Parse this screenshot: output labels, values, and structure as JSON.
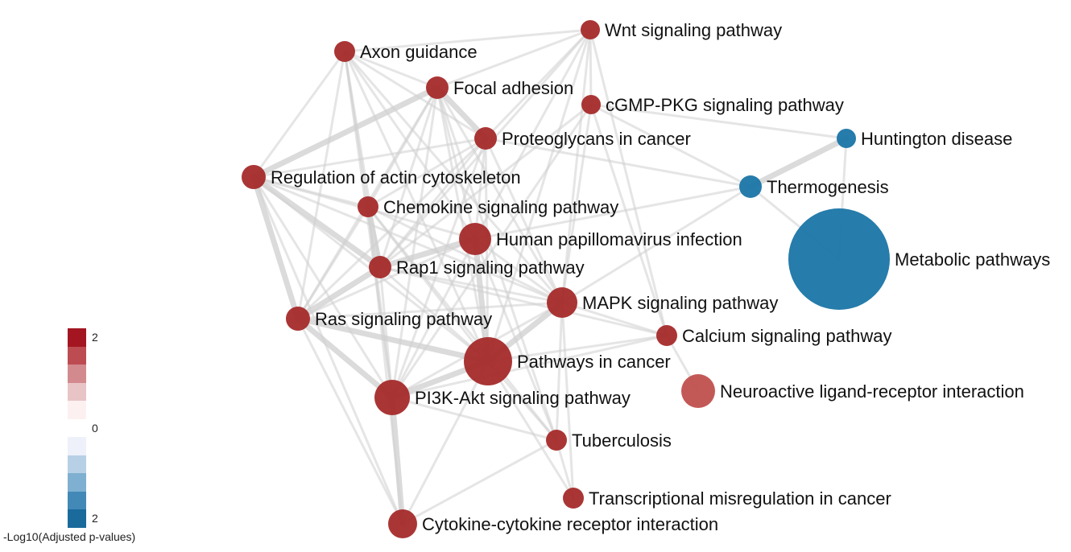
{
  "nodes": [
    {
      "id": "axon",
      "label": "Axon guidance",
      "color": "#a52a2a"
    },
    {
      "id": "wnt",
      "label": "Wnt signaling pathway",
      "color": "#a52a2a"
    },
    {
      "id": "focal",
      "label": "Focal adhesion",
      "color": "#a52a2a"
    },
    {
      "id": "cgmp",
      "label": "cGMP-PKG signaling pathway",
      "color": "#a52a2a"
    },
    {
      "id": "proteo",
      "label": "Proteoglycans in cancer",
      "color": "#a52a2a"
    },
    {
      "id": "hunt",
      "label": "Huntington disease",
      "color": "#1a75a6"
    },
    {
      "id": "actin",
      "label": "Regulation of actin cytoskeleton",
      "color": "#a52a2a"
    },
    {
      "id": "thermo",
      "label": "Thermogenesis",
      "color": "#1a75a6"
    },
    {
      "id": "chemo",
      "label": "Chemokine signaling pathway",
      "color": "#a52a2a"
    },
    {
      "id": "hpv",
      "label": "Human papillomavirus infection",
      "color": "#a52a2a"
    },
    {
      "id": "metab",
      "label": "Metabolic pathways",
      "color": "#1a75a6"
    },
    {
      "id": "rap1",
      "label": "Rap1 signaling pathway",
      "color": "#a52a2a"
    },
    {
      "id": "mapk",
      "label": "MAPK signaling pathway",
      "color": "#a52a2a"
    },
    {
      "id": "ras",
      "label": "Ras signaling pathway",
      "color": "#a52a2a"
    },
    {
      "id": "calcium",
      "label": "Calcium signaling pathway",
      "color": "#a52a2a"
    },
    {
      "id": "cancer",
      "label": "Pathways in cancer",
      "color": "#a52a2a"
    },
    {
      "id": "neuro",
      "label": "Neuroactive ligand-receptor interaction",
      "color": "#c0504d"
    },
    {
      "id": "pi3k",
      "label": "PI3K-Akt signaling pathway",
      "color": "#a52a2a"
    },
    {
      "id": "tuber",
      "label": "Tuberculosis",
      "color": "#a52a2a"
    },
    {
      "id": "transc",
      "label": "Transcriptional misregulation in cancer",
      "color": "#a52a2a"
    },
    {
      "id": "cyto",
      "label": "Cytokine-cytokine receptor interaction",
      "color": "#a52a2a"
    }
  ],
  "edges": [
    [
      "axon",
      "focal"
    ],
    [
      "axon",
      "proteo"
    ],
    [
      "axon",
      "actin"
    ],
    [
      "axon",
      "chemo"
    ],
    [
      "axon",
      "rap1"
    ],
    [
      "axon",
      "ras"
    ],
    [
      "axon",
      "mapk"
    ],
    [
      "axon",
      "wnt"
    ],
    [
      "axon",
      "hpv"
    ],
    [
      "axon",
      "pi3k"
    ],
    [
      "axon",
      "cancer"
    ],
    [
      "wnt",
      "proteo"
    ],
    [
      "wnt",
      "focal"
    ],
    [
      "wnt",
      "cancer"
    ],
    [
      "wnt",
      "hpv"
    ],
    [
      "wnt",
      "cgmp"
    ],
    [
      "wnt",
      "rap1"
    ],
    [
      "wnt",
      "calcium"
    ],
    [
      "wnt",
      "mapk"
    ],
    [
      "focal",
      "proteo"
    ],
    [
      "focal",
      "actin"
    ],
    [
      "focal",
      "rap1"
    ],
    [
      "focal",
      "ras"
    ],
    [
      "focal",
      "pi3k"
    ],
    [
      "focal",
      "hpv"
    ],
    [
      "focal",
      "cancer"
    ],
    [
      "focal",
      "mapk"
    ],
    [
      "focal",
      "chemo"
    ],
    [
      "focal",
      "tuber"
    ],
    [
      "cgmp",
      "calcium"
    ],
    [
      "cgmp",
      "thermo"
    ],
    [
      "cgmp",
      "hunt"
    ],
    [
      "cgmp",
      "mapk"
    ],
    [
      "cgmp",
      "rap1"
    ],
    [
      "cgmp",
      "pi3k"
    ],
    [
      "proteo",
      "actin"
    ],
    [
      "proteo",
      "rap1"
    ],
    [
      "proteo",
      "ras"
    ],
    [
      "proteo",
      "pi3k"
    ],
    [
      "proteo",
      "cancer"
    ],
    [
      "proteo",
      "mapk"
    ],
    [
      "proteo",
      "hpv"
    ],
    [
      "proteo",
      "chemo"
    ],
    [
      "hunt",
      "thermo"
    ],
    [
      "hunt",
      "metab"
    ],
    [
      "thermo",
      "metab"
    ],
    [
      "thermo",
      "hpv"
    ],
    [
      "thermo",
      "mapk"
    ],
    [
      "thermo",
      "proteo"
    ],
    [
      "actin",
      "chemo"
    ],
    [
      "actin",
      "rap1"
    ],
    [
      "actin",
      "ras"
    ],
    [
      "actin",
      "pi3k"
    ],
    [
      "actin",
      "cancer"
    ],
    [
      "actin",
      "mapk"
    ],
    [
      "actin",
      "hpv"
    ],
    [
      "actin",
      "cyto"
    ],
    [
      "chemo",
      "rap1"
    ],
    [
      "chemo",
      "ras"
    ],
    [
      "chemo",
      "pi3k"
    ],
    [
      "chemo",
      "cancer"
    ],
    [
      "chemo",
      "mapk"
    ],
    [
      "chemo",
      "tuber"
    ],
    [
      "chemo",
      "cyto"
    ],
    [
      "hpv",
      "rap1"
    ],
    [
      "hpv",
      "ras"
    ],
    [
      "hpv",
      "pi3k"
    ],
    [
      "hpv",
      "cancer"
    ],
    [
      "hpv",
      "mapk"
    ],
    [
      "hpv",
      "tuber"
    ],
    [
      "rap1",
      "ras"
    ],
    [
      "rap1",
      "pi3k"
    ],
    [
      "rap1",
      "cancer"
    ],
    [
      "rap1",
      "mapk"
    ],
    [
      "rap1",
      "calcium"
    ],
    [
      "mapk",
      "ras"
    ],
    [
      "mapk",
      "pi3k"
    ],
    [
      "mapk",
      "cancer"
    ],
    [
      "mapk",
      "calcium"
    ],
    [
      "mapk",
      "tuber"
    ],
    [
      "mapk",
      "transc"
    ],
    [
      "ras",
      "pi3k"
    ],
    [
      "ras",
      "cancer"
    ],
    [
      "ras",
      "cyto"
    ],
    [
      "calcium",
      "cancer"
    ],
    [
      "calcium",
      "neuro"
    ],
    [
      "calcium",
      "pi3k"
    ],
    [
      "cancer",
      "pi3k"
    ],
    [
      "cancer",
      "tuber"
    ],
    [
      "cancer",
      "cyto"
    ],
    [
      "cancer",
      "transc"
    ],
    [
      "pi3k",
      "tuber"
    ],
    [
      "pi3k",
      "cyto"
    ],
    [
      "tuber",
      "cyto"
    ],
    [
      "transc",
      "tuber"
    ]
  ],
  "legend": {
    "title": "-Log10(Adjusted p-values)",
    "tick_top": "2",
    "tick_mid": "0",
    "tick_bottom": "2",
    "colors": [
      "#a31621",
      "#bd4b52",
      "#d38a8e",
      "#e9c4c6",
      "#fdf0f0",
      "#ffffff",
      "#eef0fa",
      "#b8d0e5",
      "#7fb0d1",
      "#4289b8",
      "#1a6a9c"
    ]
  }
}
